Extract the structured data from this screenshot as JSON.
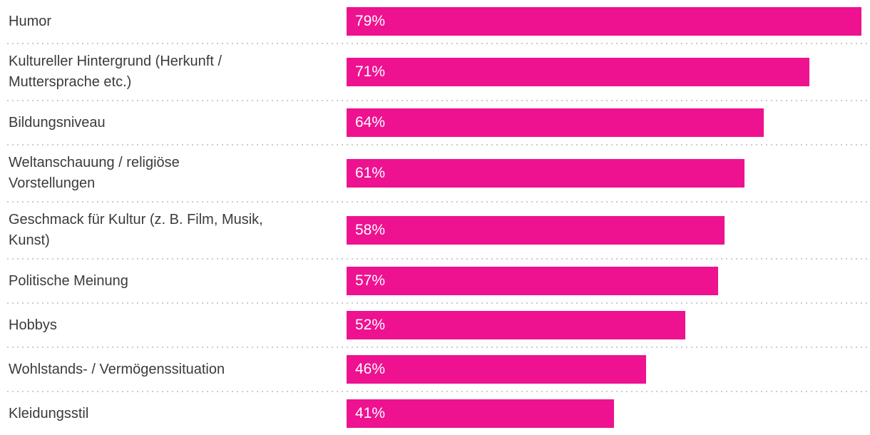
{
  "chart_data": {
    "type": "bar",
    "orientation": "horizontal",
    "title": "",
    "xlabel": "",
    "ylabel": "",
    "xlim": [
      0,
      80
    ],
    "grid": false,
    "legend": false,
    "categories": [
      "Humor",
      "Kultureller Hintergrund (Herkunft / Muttersprache etc.)",
      "Bildungsniveau",
      "Weltanschauung / religiöse Vorstellungen",
      "Geschmack für Kultur (z. B. Film, Musik, Kunst)",
      "Politische Meinung",
      "Hobbys",
      "Wohlstands- / Vermögenssituation",
      "Kleidungsstil"
    ],
    "display_labels": [
      "Humor",
      "Kultureller Hintergrund (Herkunft /\nMuttersprache etc.)",
      "Bildungsniveau",
      "Weltanschauung / religiöse\nVorstellungen",
      "Geschmack für Kultur (z. B. Film, Musik,\nKunst)",
      "Politische Meinung",
      "Hobbys",
      "Wohlstands- / Vermögenssituation",
      "Kleidungsstil"
    ],
    "values": [
      79,
      71,
      64,
      61,
      58,
      57,
      52,
      46,
      41
    ],
    "value_labels": [
      "79%",
      "71%",
      "64%",
      "61%",
      "58%",
      "57%",
      "52%",
      "46%",
      "41%"
    ],
    "bar_color": "#EE1190",
    "category_label_color": "#3B3B3B",
    "value_label_color": "#FFFFFF",
    "separator_color": "#CCCCCC",
    "background_color": "#FFFFFF"
  }
}
